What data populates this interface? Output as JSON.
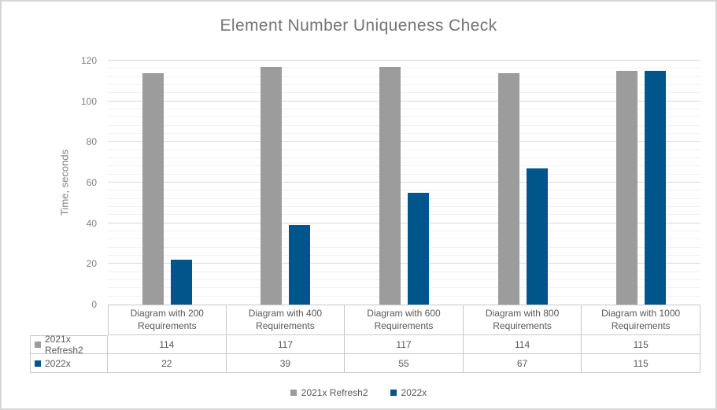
{
  "chart_data": {
    "type": "bar",
    "title": "Element Number Uniqueness Check",
    "categories": [
      "Diagram with 200 Requirements",
      "Diagram with 400 Requirements",
      "Diagram with 600 Requirements",
      "Diagram with 800 Requirements",
      "Diagram with 1000 Requirements"
    ],
    "series": [
      {
        "name": "2021x Refresh2",
        "color": "#9c9c9c",
        "values": [
          114,
          117,
          117,
          114,
          115
        ]
      },
      {
        "name": "2022x",
        "color": "#00558a",
        "values": [
          22,
          39,
          55,
          67,
          115
        ]
      }
    ],
    "xlabel": "",
    "ylabel": "Time, seconds",
    "ylim": [
      0,
      120
    ],
    "y_major_unit": 20,
    "y_minor_unit": 4,
    "y_tick_labels": [
      "0",
      "20",
      "40",
      "60",
      "80",
      "100",
      "120"
    ],
    "grid": "on",
    "legend_position": "bottom",
    "data_table_shown": true
  },
  "colors": {
    "grid_major": "#d9d9d9",
    "grid_minor": "#f2f2f2",
    "table_border": "#c9c9c9",
    "text_title": "#747474",
    "text_axis": "#7f7f7f",
    "text_table": "#595959",
    "series_gray": "#9c9c9c",
    "series_blue": "#00558a",
    "frame_border": "#d6d6d6"
  }
}
